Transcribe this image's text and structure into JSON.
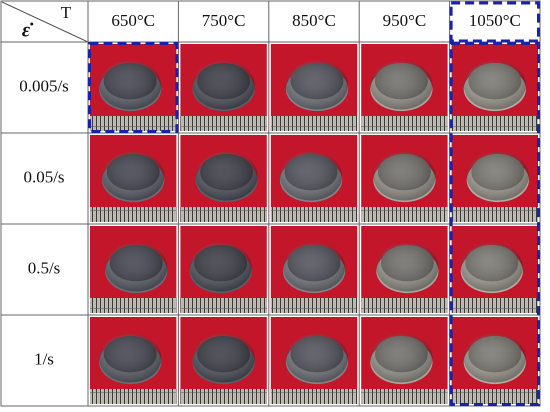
{
  "table": {
    "corner": {
      "column_header": "T",
      "row_header": "ε̇"
    },
    "columns": [
      "650°C",
      "750°C",
      "850°C",
      "950°C",
      "1050°C"
    ],
    "rows": [
      "0.005/s",
      "0.05/s",
      "0.5/s",
      "1/s"
    ]
  }
}
